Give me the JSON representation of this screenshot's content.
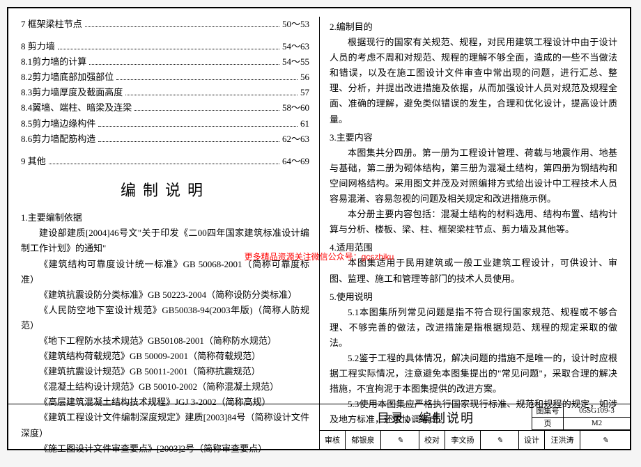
{
  "toc_sections": [
    {
      "items": [
        {
          "label": "7 框架梁柱节点",
          "page": "50～53"
        }
      ]
    },
    {
      "items": [
        {
          "label": "8 剪力墙",
          "page": "54～63"
        },
        {
          "label": "8.1剪力墙的计算",
          "page": "54～55"
        },
        {
          "label": "8.2剪力墙底部加强部位",
          "page": "56"
        },
        {
          "label": "8.3剪力墙厚度及截面高度",
          "page": "57"
        },
        {
          "label": "8.4翼墙、端柱、暗梁及连梁",
          "page": "58～60"
        },
        {
          "label": "8.5剪力墙边缘构件",
          "page": "61"
        },
        {
          "label": "8.6剪力墙配筋构造",
          "page": "62～63"
        }
      ]
    },
    {
      "items": [
        {
          "label": "9 其他",
          "page": "64～69"
        }
      ]
    }
  ],
  "big_title": "编制说明",
  "left_heading": "1.主要编制依据",
  "left_paragraphs": [
    "建设部建质[2004]46号文\"关于印发《二00四年国家建筑标准设计编制工作计划》的通知\"",
    "《建筑结构可靠度设计统一标准》GB 50068-2001（简称可靠度标准）",
    "《建筑抗震设防分类标准》GB 50223-2004（简称设防分类标准）",
    "《人民防空地下室设计规范》GB50038-94(2003年版)（简称人防规范）",
    "《地下工程防水技术规范》GB50108-2001（简称防水规范）",
    "《建筑结构荷载规范》GB 50009-2001（简称荷载规范）",
    "《建筑抗震设计规范》GB 50011-2001（简称抗震规范）",
    "《混凝土结构设计规范》GB 50010-2002（简称混凝土规范）",
    "《高层建筑混凝土结构技术规程》JGJ 3-2002（简称高规）",
    "《建筑工程设计文件编制深度规定》建质[2003]84号（简称设计文件深度）",
    "《施工图设计文件审查要点》[2003]2号（简称审查要点）"
  ],
  "right_sections": [
    {
      "heading": "2.编制目的",
      "paras": [
        "根据现行的国家有关规范、规程，对民用建筑工程设计中由于设计人员的考虑不周和对规范、规程的理解不够全面，造成的一些不当做法和错误，以及在施工图设计文件审查中常出现的问题，进行汇总、整理、分析，并提出改进措施及依据，从而加强设计人员对规范及规程全面、准确的理解，避免类似错误的发生，合理和优化设计，提高设计质量。"
      ]
    },
    {
      "heading": "3.主要内容",
      "paras": [
        "本图集共分四册。第一册为工程设计管理、荷载与地震作用、地基与基础，第二册为砌体结构，第三册为混凝土结构，第四册为钢结构和空间网格结构。采用图文并茂及对照编排方式给出设计中工程技术人员容易混淆、容易忽视的问题及相关规定和改进措施示例。",
        "本分册主要内容包括：混凝土结构的材料选用、结构布置、结构计算与分析、楼板、梁、柱、框架梁柱节点、剪力墙及其他等。"
      ]
    },
    {
      "heading": "4.适用范围",
      "paras": [
        "本图集适用于民用建筑或一般工业建筑工程设计，可供设计、审图、监理、施工和管理等部门的技术人员使用。"
      ]
    },
    {
      "heading": "5.使用说明",
      "paras": [
        "5.1本图集所列常见问题是指不符合现行国家规范、规程或不够合理、不够完善的做法，改进措施是指根据规范、规程的规定采取的做法。",
        "5.2鉴于工程的具体情况，解决问题的措施不是唯一的，设计时应根据工程实际情况，注意避免本图集提出的\"常见问题\"，采取合理的解决措施，不宜拘泥于本图集提供的改进方案。",
        "5.3使用本图集应严格执行国家现行标准、规范和规程的规定，如涉及地方标准，还应协调考虑。"
      ]
    }
  ],
  "watermark": "更多精品资源关注微信公众号：gcszhiku",
  "footer": {
    "title": "目录、编制说明",
    "code_label": "图集号",
    "code_value": "05SG109-3",
    "page_label": "页",
    "page_value": "M2",
    "sign": [
      {
        "role": "审核",
        "name": "郁银泉"
      },
      {
        "role": "校对",
        "name": "李文扬"
      },
      {
        "role": "设计",
        "name": "汪洪涛"
      }
    ]
  }
}
